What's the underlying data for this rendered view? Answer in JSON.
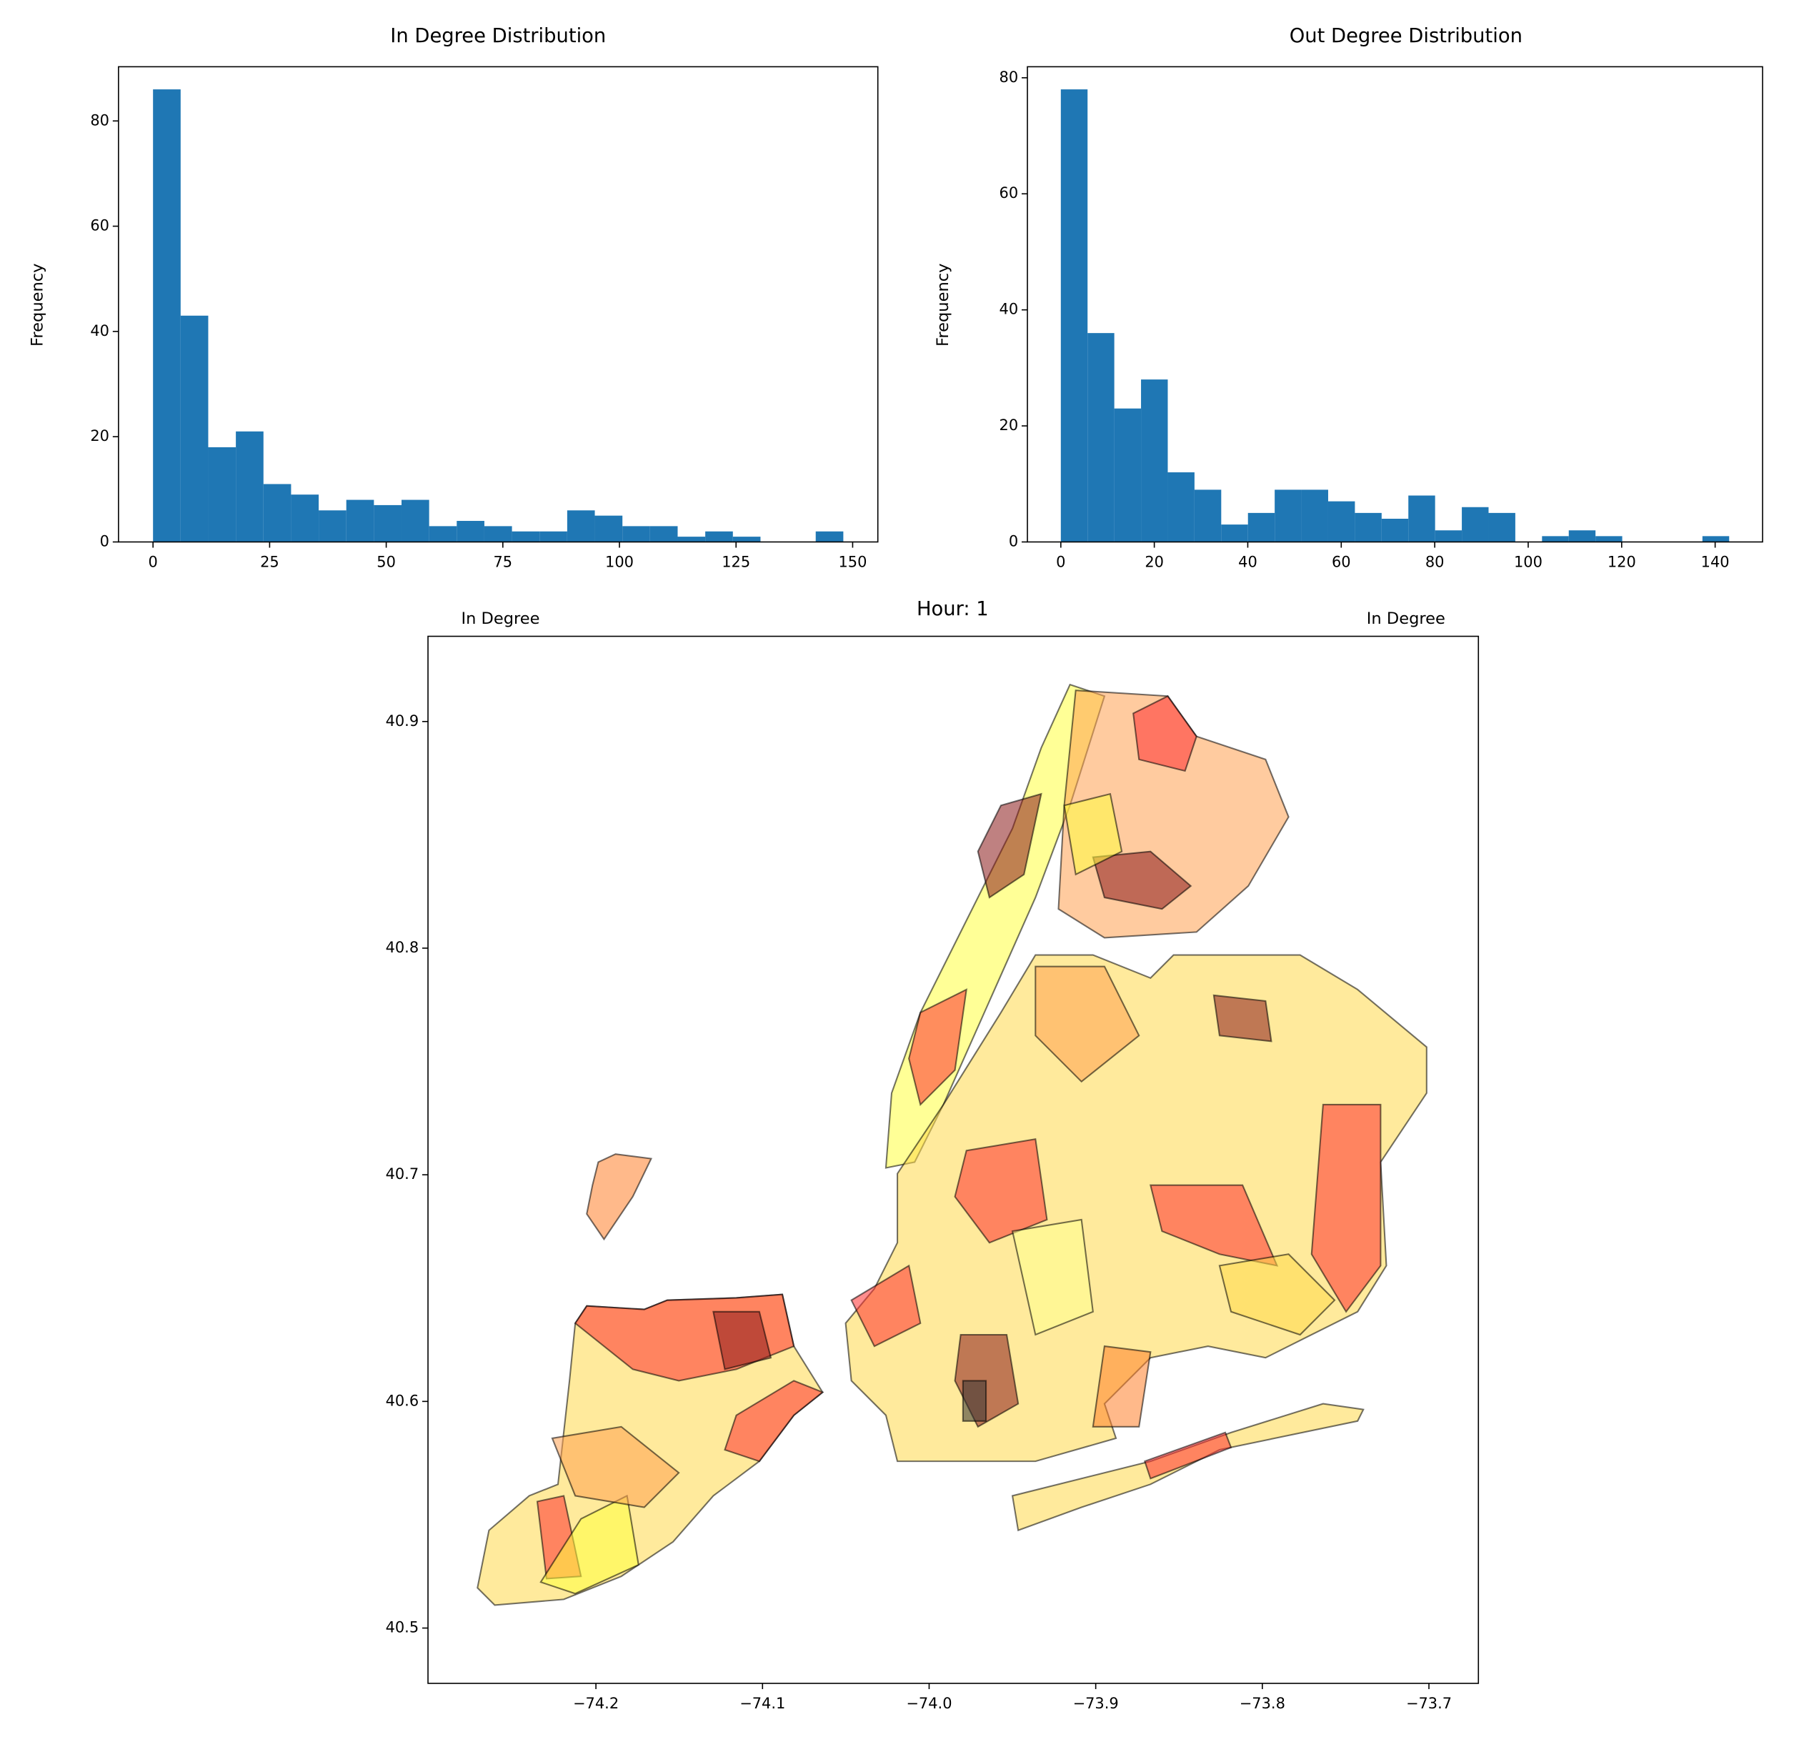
{
  "chart_data": [
    {
      "type": "histogram",
      "title": "In Degree Distribution",
      "x_label": "In Degree",
      "y_label": "Frequency",
      "color": "#1f77b4",
      "bins": [
        0,
        5.92,
        11.84,
        17.76,
        23.68,
        29.6,
        35.52,
        41.44,
        47.36,
        53.28,
        59.2,
        65.12,
        71.04,
        76.96,
        82.88,
        88.8,
        94.72,
        100.64,
        106.56,
        112.48,
        118.4,
        124.32,
        130.24,
        136.16,
        142.08,
        148
      ],
      "values": [
        86,
        43,
        18,
        21,
        11,
        9,
        6,
        8,
        7,
        8,
        3,
        4,
        3,
        2,
        2,
        6,
        5,
        3,
        3,
        1,
        2,
        1,
        0,
        0,
        2
      ],
      "xlim": [
        -7.4,
        155.4
      ],
      "xticks": [
        0,
        25,
        50,
        75,
        100,
        125,
        150
      ],
      "ylim": [
        0,
        90.3
      ],
      "yticks": [
        0,
        20,
        40,
        60,
        80
      ]
    },
    {
      "type": "histogram",
      "title": "Out Degree Distribution",
      "x_label": "In Degree",
      "y_label": "Frequency",
      "color": "#1f77b4",
      "bins": [
        0,
        5.72,
        11.44,
        17.16,
        22.88,
        28.6,
        34.32,
        40.04,
        45.76,
        51.48,
        57.2,
        62.92,
        68.64,
        74.36,
        80.08,
        85.8,
        91.52,
        97.24,
        102.96,
        108.68,
        114.4,
        120.12,
        125.84,
        131.56,
        137.28,
        143
      ],
      "values": [
        78,
        36,
        23,
        28,
        12,
        9,
        3,
        5,
        9,
        9,
        7,
        5,
        4,
        8,
        2,
        6,
        5,
        0,
        1,
        2,
        1,
        0,
        0,
        0,
        1
      ],
      "xlim": [
        -7.15,
        150.15
      ],
      "xticks": [
        0,
        20,
        40,
        60,
        80,
        100,
        120,
        140
      ],
      "ylim": [
        0,
        81.9
      ],
      "yticks": [
        0,
        20,
        40,
        60,
        80
      ]
    },
    {
      "type": "map",
      "title": "Hour: 1",
      "xlim": [
        -74.3008,
        -73.6703
      ],
      "xticks": [
        {
          "value": -74.2,
          "label": "−74.2"
        },
        {
          "value": -74.1,
          "label": "−74.1"
        },
        {
          "value": -74.0,
          "label": "−74.0"
        },
        {
          "value": -73.9,
          "label": "−73.9"
        },
        {
          "value": -73.8,
          "label": "−73.8"
        },
        {
          "value": -73.7,
          "label": "−73.7"
        }
      ],
      "ylim": [
        40.4756,
        40.9376
      ],
      "yticks": [
        40.5,
        40.6,
        40.7,
        40.8,
        40.9
      ]
    }
  ]
}
